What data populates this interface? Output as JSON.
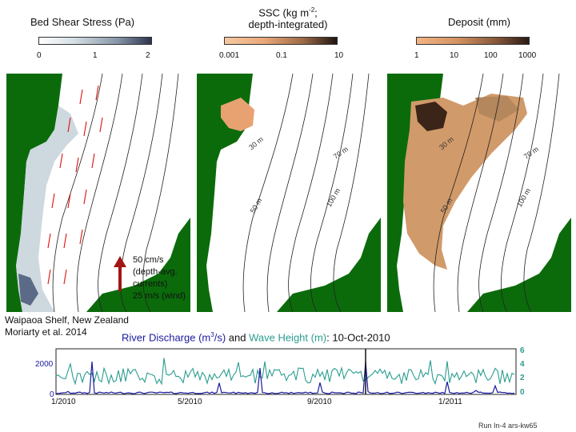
{
  "titles": {
    "bed_shear": "Bed Shear Stress (Pa)",
    "ssc_line1": "SSC (kg m",
    "ssc_sup": "-2",
    "ssc_line1_end": ";",
    "ssc_line2": "depth-integrated)",
    "deposit": "Deposit (mm)"
  },
  "colorbars": {
    "bed_shear_ticks": [
      "0",
      "1",
      "2"
    ],
    "ssc_ticks": [
      "0.001",
      "0.1",
      "10"
    ],
    "deposit_ticks": [
      "1",
      "10",
      "100",
      "1000"
    ]
  },
  "contour_labels": {
    "c30": "30 m",
    "c70": "70 m",
    "c50": "50 m",
    "c100": "100 m"
  },
  "legend": {
    "line1": "50 cm/s",
    "line2": "(depth-avg.",
    "line3": "currents)",
    "line4": "25 m/s (wind)"
  },
  "caption": {
    "line1": "Waipaoa Shelf, New Zealand",
    "line2": "Moriarty et al. 2014"
  },
  "timeseries": {
    "title_part1": "River Discharge (m",
    "title_sup": "3",
    "title_part2": "/s)",
    "title_and": " and ",
    "title_part3": "Wave Height (m)",
    "title_part4": ": 10-Oct-2010",
    "left_ticks": [
      "2000",
      "0"
    ],
    "right_ticks": [
      "6",
      "4",
      "2",
      "0"
    ],
    "x_ticks": [
      "1/2010",
      "5/2010",
      "9/2010",
      "1/2011"
    ],
    "colors": {
      "discharge": "#1a1aa0",
      "wave": "#2a9d8f"
    }
  },
  "footer": "Run In-4 ars-kw65",
  "colors": {
    "land": "#0b6b0b",
    "arrow": "#a31515"
  }
}
